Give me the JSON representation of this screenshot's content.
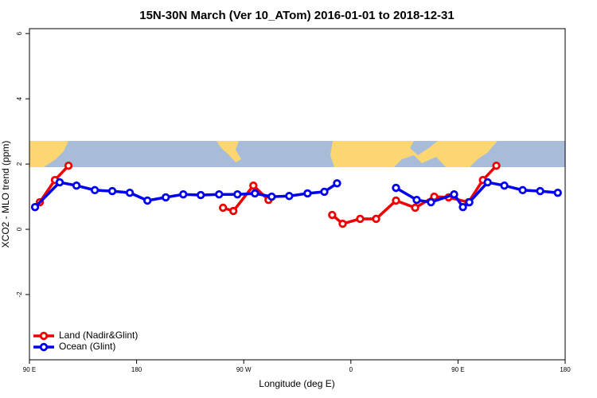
{
  "chart_data": {
    "type": "line",
    "title": "15N-30N March (Ver 10_ATom)   2016-01-01 to 2018-12-31",
    "xlabel": "Longitude (deg E)",
    "ylabel": "XCO2 - MLO trend (ppm)",
    "xlim": [
      90,
      540
    ],
    "ylim": [
      -4.0,
      6.15
    ],
    "xticks": [
      {
        "value": 90,
        "label": "90 E"
      },
      180,
      {
        "value": 270,
        "label": "90 W"
      },
      {
        "value": 360,
        "label": "0"
      },
      {
        "value": 450,
        "label": "90 E"
      },
      {
        "value": 540,
        "label": "180"
      }
    ],
    "yticks": [
      -2,
      0,
      2,
      4,
      6
    ],
    "legend": "bottom-left",
    "series": [
      {
        "name": "Land (Nadir&Glint)",
        "color": "#ee0000",
        "x": [
          98.7,
          111.4,
          122.8,
          null,
          252.6,
          261.3,
          278.1,
          290.8,
          null,
          344.3,
          353.1,
          367.8,
          381.2,
          397.9,
          414.0,
          430.0,
          442.1,
          458.8,
          470.9,
          482.2
        ],
        "values": [
          0.83,
          1.51,
          1.95,
          null,
          0.66,
          0.56,
          1.34,
          0.9,
          null,
          0.44,
          0.17,
          0.32,
          0.32,
          0.88,
          0.66,
          1.0,
          0.98,
          0.83,
          1.51,
          1.95
        ]
      },
      {
        "name": "Ocean (Glint)",
        "color": "#0000ee",
        "x": [
          94.7,
          115.4,
          129.5,
          144.9,
          159.6,
          174.3,
          189.1,
          204.5,
          219.2,
          233.9,
          249.3,
          264.7,
          279.4,
          293.5,
          308.2,
          323.6,
          337.7,
          348.4,
          null,
          397.9,
          415.3,
          427.3,
          446.7,
          454.1,
          459.5,
          474.9,
          488.9,
          504.3,
          519.0,
          533.8
        ],
        "values": [
          0.68,
          1.44,
          1.34,
          1.2,
          1.17,
          1.12,
          0.88,
          0.98,
          1.07,
          1.05,
          1.07,
          1.07,
          1.1,
          1.0,
          1.02,
          1.1,
          1.15,
          1.41,
          null,
          1.27,
          0.9,
          0.83,
          1.07,
          0.68,
          0.83,
          1.44,
          1.34,
          1.2,
          1.17,
          1.12
        ]
      }
    ]
  }
}
